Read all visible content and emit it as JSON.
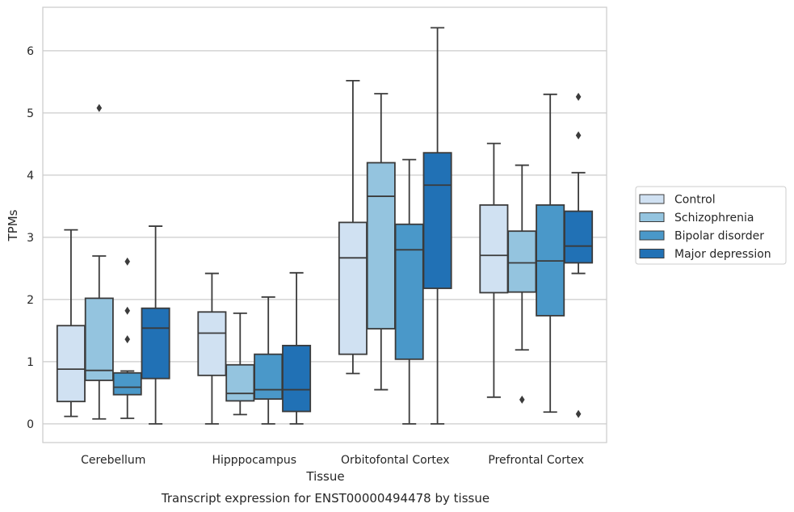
{
  "chart_data": {
    "type": "box",
    "xlabel": "Tissue",
    "ylabel": "TPMs",
    "caption": "Transcript expression for ENST00000494478 by tissue",
    "ylim": [
      -0.3,
      6.7
    ],
    "yticks": [
      "0",
      "1",
      "2",
      "3",
      "4",
      "5",
      "6"
    ],
    "categories": [
      "Cerebellum",
      "Hipppocampus",
      "Orbitofontal Cortex",
      "Prefrontal Cortex"
    ],
    "legend_position": "right",
    "grid": "horizontal",
    "series": [
      {
        "name": "Control",
        "color": "#d0e1f2",
        "boxes": [
          {
            "whislo": 0.12,
            "q1": 0.36,
            "med": 0.88,
            "q3": 1.58,
            "whishi": 3.12,
            "fliers": []
          },
          {
            "whislo": 0.0,
            "q1": 0.78,
            "med": 1.46,
            "q3": 1.8,
            "whishi": 2.42,
            "fliers": []
          },
          {
            "whislo": 0.81,
            "q1": 1.12,
            "med": 2.67,
            "q3": 3.24,
            "whishi": 5.52,
            "fliers": []
          },
          {
            "whislo": 0.43,
            "q1": 2.11,
            "med": 2.71,
            "q3": 3.52,
            "whishi": 4.51,
            "fliers": []
          }
        ]
      },
      {
        "name": "Schizophrenia",
        "color": "#94c4df",
        "boxes": [
          {
            "whislo": 0.08,
            "q1": 0.7,
            "med": 0.86,
            "q3": 2.02,
            "whishi": 2.7,
            "fliers": [
              5.08
            ]
          },
          {
            "whislo": 0.15,
            "q1": 0.37,
            "med": 0.49,
            "q3": 0.95,
            "whishi": 1.78,
            "fliers": []
          },
          {
            "whislo": 0.55,
            "q1": 1.53,
            "med": 3.66,
            "q3": 4.2,
            "whishi": 5.31,
            "fliers": []
          },
          {
            "whislo": 1.19,
            "q1": 2.12,
            "med": 2.59,
            "q3": 3.1,
            "whishi": 4.16,
            "fliers": [
              0.39
            ]
          }
        ]
      },
      {
        "name": "Bipolar disorder",
        "color": "#4a98c9",
        "boxes": [
          {
            "whislo": 0.09,
            "q1": 0.47,
            "med": 0.59,
            "q3": 0.82,
            "whishi": 0.85,
            "fliers": [
              2.61,
              1.82,
              1.36
            ]
          },
          {
            "whislo": 0.0,
            "q1": 0.4,
            "med": 0.55,
            "q3": 1.12,
            "whishi": 2.04,
            "fliers": []
          },
          {
            "whislo": 0.0,
            "q1": 1.04,
            "med": 2.8,
            "q3": 3.21,
            "whishi": 4.25,
            "fliers": []
          },
          {
            "whislo": 0.19,
            "q1": 1.74,
            "med": 2.62,
            "q3": 3.52,
            "whishi": 5.3,
            "fliers": []
          }
        ]
      },
      {
        "name": "Major depression",
        "color": "#2171b5",
        "boxes": [
          {
            "whislo": 0.0,
            "q1": 0.73,
            "med": 1.54,
            "q3": 1.86,
            "whishi": 3.18,
            "fliers": []
          },
          {
            "whislo": 0.0,
            "q1": 0.2,
            "med": 0.55,
            "q3": 1.26,
            "whishi": 2.43,
            "fliers": []
          },
          {
            "whislo": 0.0,
            "q1": 2.18,
            "med": 3.84,
            "q3": 4.36,
            "whishi": 6.37,
            "fliers": []
          },
          {
            "whislo": 2.42,
            "q1": 2.59,
            "med": 2.86,
            "q3": 3.42,
            "whishi": 4.04,
            "fliers": [
              5.26,
              4.64,
              0.16
            ]
          }
        ]
      }
    ]
  }
}
